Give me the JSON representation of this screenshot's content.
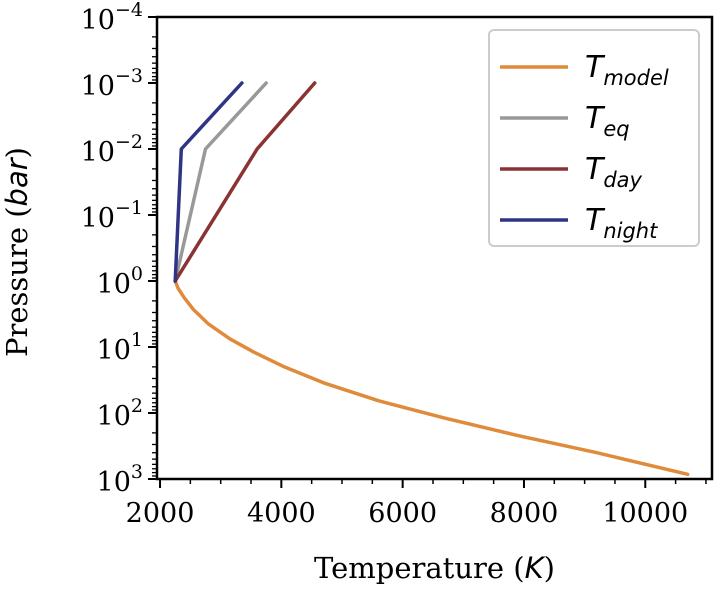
{
  "chart_data": {
    "type": "line",
    "xlabel": "Temperature",
    "xlabel_unit": "K",
    "ylabel": "Pressure",
    "ylabel_unit": "bar",
    "x_scale": "linear",
    "y_scale": "log",
    "y_inverted": true,
    "xlim": [
      1950,
      11100
    ],
    "ylim": [
      1000,
      0.0001
    ],
    "x_ticks": [
      2000,
      4000,
      6000,
      8000,
      10000
    ],
    "x_tick_labels": [
      "2000",
      "4000",
      "6000",
      "8000",
      "10000"
    ],
    "y_ticks": [
      {
        "value": 0.0001,
        "base": "10",
        "exp": "−4"
      },
      {
        "value": 0.001,
        "base": "10",
        "exp": "−3"
      },
      {
        "value": 0.01,
        "base": "10",
        "exp": "−2"
      },
      {
        "value": 0.1,
        "base": "10",
        "exp": "−1"
      },
      {
        "value": 1,
        "base": "10",
        "exp": "0"
      },
      {
        "value": 10,
        "base": "10",
        "exp": "1"
      },
      {
        "value": 100,
        "base": "10",
        "exp": "2"
      },
      {
        "value": 1000,
        "base": "10",
        "exp": "3"
      }
    ],
    "grid": false,
    "legend_position": "top-right",
    "series": [
      {
        "name_main": "T",
        "name_sub": "model",
        "color": "#e08a3c",
        "x": [
          2250,
          2300,
          2400,
          2550,
          2800,
          3150,
          3550,
          4050,
          4700,
          5600,
          6700,
          7900,
          9200,
          10700
        ],
        "y": [
          1.0,
          1.3,
          1.8,
          2.7,
          4.5,
          7.5,
          12,
          20,
          35,
          65,
          120,
          220,
          400,
          850
        ]
      },
      {
        "name_main": "T",
        "name_sub": "eq",
        "color": "#999999",
        "x": [
          2250,
          2750,
          3750
        ],
        "y": [
          1.0,
          0.01,
          0.001
        ]
      },
      {
        "name_main": "T",
        "name_sub": "day",
        "color": "#8b3333",
        "x": [
          2250,
          3600,
          4550
        ],
        "y": [
          1.0,
          0.01,
          0.001
        ]
      },
      {
        "name_main": "T",
        "name_sub": "night",
        "color": "#2e3585",
        "x": [
          2250,
          2350,
          3350
        ],
        "y": [
          1.0,
          0.01,
          0.001
        ]
      }
    ]
  }
}
